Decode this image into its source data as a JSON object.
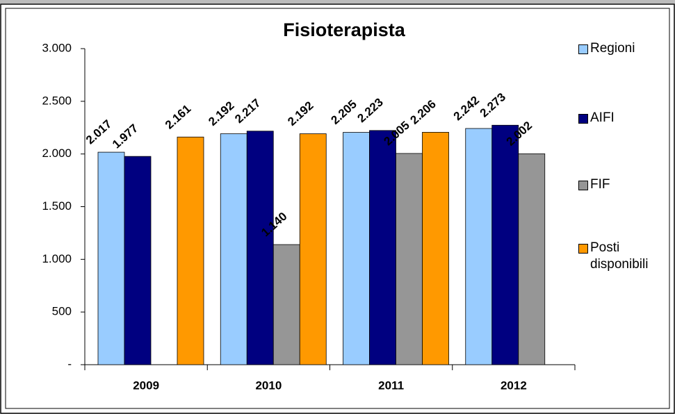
{
  "chart_data": {
    "type": "bar",
    "title": "Fisioterapista",
    "categories": [
      "2009",
      "2010",
      "2011",
      "2012"
    ],
    "series": [
      {
        "name": "Regioni",
        "color": "#99ccff",
        "values": [
          2017,
          2192,
          2205,
          2242
        ],
        "value_labels": [
          "2.017",
          "2.192",
          "2.205",
          "2.242"
        ]
      },
      {
        "name": "AIFI",
        "color": "#000080",
        "values": [
          1977,
          2217,
          2223,
          2273
        ],
        "value_labels": [
          "1.977",
          "2.217",
          "2.223",
          "2.273"
        ]
      },
      {
        "name": "FIF",
        "color": "#969696",
        "values": [
          null,
          1140,
          2005,
          2002
        ],
        "value_labels": [
          null,
          "1.140",
          "2.005",
          "2.002"
        ]
      },
      {
        "name": "Posti disponibili",
        "color": "#ff9900",
        "values": [
          2161,
          2192,
          2206,
          null
        ],
        "value_labels": [
          "2.161",
          "2.192",
          "2.206",
          null
        ]
      }
    ],
    "ylim": [
      0,
      3000
    ],
    "yticks": [
      {
        "value": 0,
        "label": "-"
      },
      500,
      {
        "value": 1000,
        "label": "1.000"
      },
      {
        "value": 1500,
        "label": "1.500"
      },
      {
        "value": 2000,
        "label": "2.000"
      },
      {
        "value": 2500,
        "label": "2.500"
      },
      {
        "value": 3000,
        "label": "3.000"
      }
    ],
    "legend": "right"
  }
}
